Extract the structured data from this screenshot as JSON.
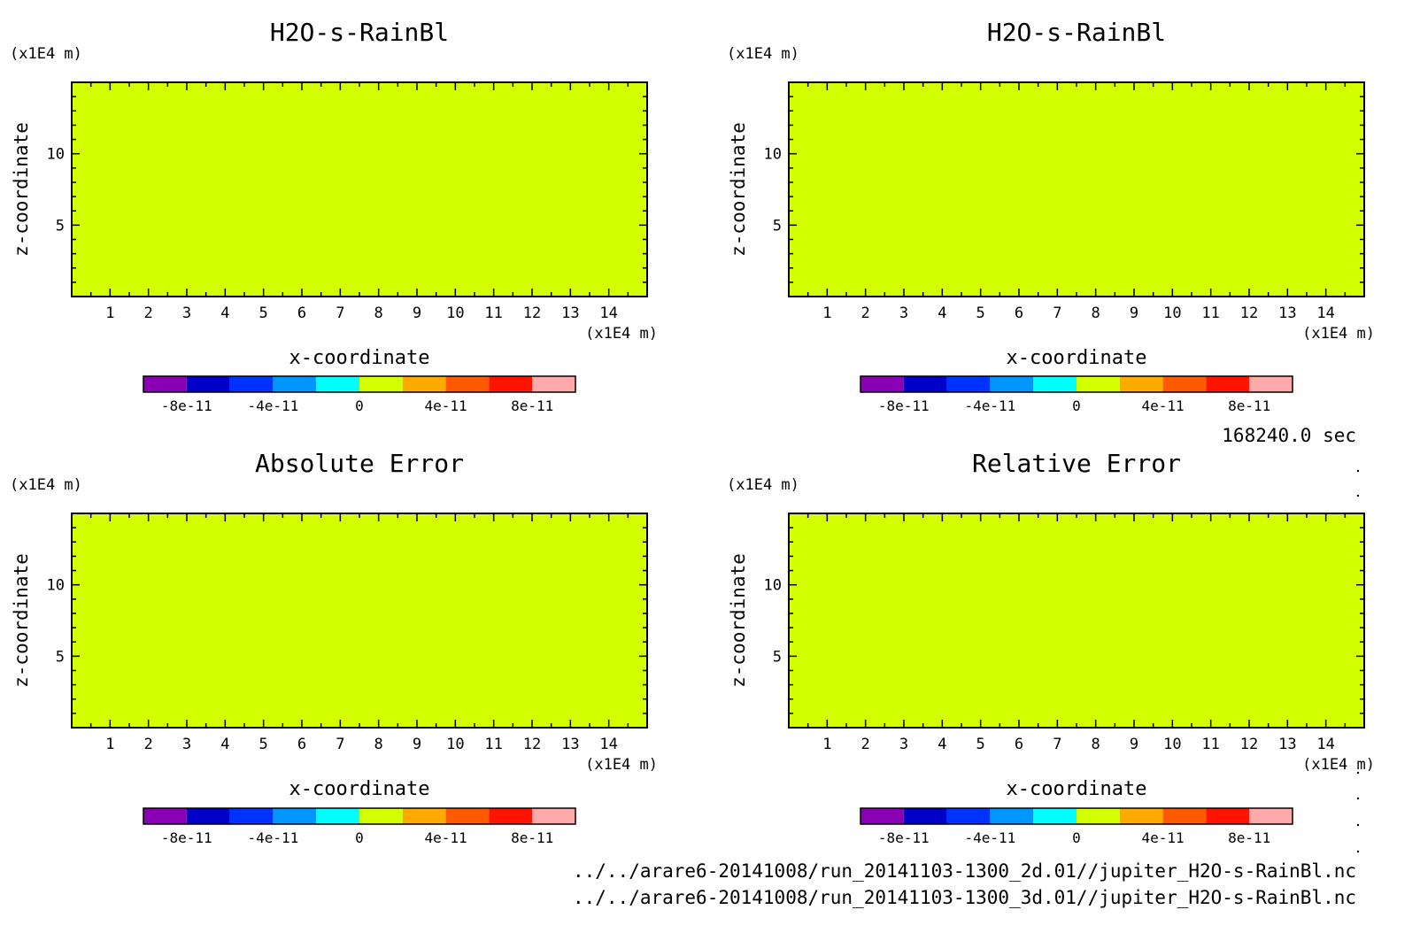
{
  "time_label": "168240.0 sec",
  "files": [
    "../../arare6-20141008/run_20141103-1300_2d.01//jupiter_H2O-s-RainBl.nc",
    "../../arare6-20141008/run_20141103-1300_3d.01//jupiter_H2O-s-RainBl.nc"
  ],
  "colors": {
    "background_field": "#d4ff00",
    "anomaly_field": "#00ffff"
  },
  "chart_data": [
    {
      "type": "heatmap",
      "title": "H2O-s-RainBl",
      "xlabel": "x-coordinate",
      "ylabel": "z-coordinate",
      "x_unit": "(x1E4 m)",
      "y_unit": "(x1E4 m)",
      "xlim": [
        0,
        15
      ],
      "ylim": [
        0,
        15
      ],
      "x_ticks": [
        "1",
        "2",
        "3",
        "4",
        "5",
        "6",
        "7",
        "8",
        "9",
        "10",
        "11",
        "12",
        "13",
        "14"
      ],
      "y_ticks": [
        "5",
        "10"
      ],
      "field": "uniform",
      "colorbar": {
        "colors": [
          "#8a00b4",
          "#0000c8",
          "#0032ff",
          "#0096ff",
          "#00ffff",
          "#d4ff00",
          "#ffaa00",
          "#ff5a00",
          "#ff1400",
          "#ffaaaa"
        ],
        "tick_labels": [
          "-8e-11",
          "-4e-11",
          "0",
          "4e-11",
          "8e-11"
        ]
      }
    },
    {
      "type": "heatmap",
      "title": "H2O-s-RainBl",
      "xlabel": "x-coordinate",
      "ylabel": "z-coordinate",
      "x_unit": "(x1E4 m)",
      "y_unit": "(x1E4 m)",
      "xlim": [
        0,
        15
      ],
      "ylim": [
        0,
        15
      ],
      "x_ticks": [
        "1",
        "2",
        "3",
        "4",
        "5",
        "6",
        "7",
        "8",
        "9",
        "10",
        "11",
        "12",
        "13",
        "14"
      ],
      "y_ticks": [
        "5",
        "10"
      ],
      "field": "uniform",
      "colorbar": {
        "colors": [
          "#8a00b4",
          "#0000c8",
          "#0032ff",
          "#0096ff",
          "#00ffff",
          "#d4ff00",
          "#ffaa00",
          "#ff5a00",
          "#ff1400",
          "#ffaaaa"
        ],
        "tick_labels": [
          "-8e-11",
          "-4e-11",
          "0",
          "4e-11",
          "8e-11"
        ]
      }
    },
    {
      "type": "heatmap",
      "title": "Absolute Error",
      "xlabel": "x-coordinate",
      "ylabel": "z-coordinate",
      "x_unit": "(x1E4 m)",
      "y_unit": "(x1E4 m)",
      "xlim": [
        0,
        15
      ],
      "ylim": [
        0,
        15
      ],
      "x_ticks": [
        "1",
        "2",
        "3",
        "4",
        "5",
        "6",
        "7",
        "8",
        "9",
        "10",
        "11",
        "12",
        "13",
        "14"
      ],
      "y_ticks": [
        "5",
        "10"
      ],
      "field": "patchy",
      "colorbar": {
        "colors": [
          "#8a00b4",
          "#0000c8",
          "#0032ff",
          "#0096ff",
          "#00ffff",
          "#d4ff00",
          "#ffaa00",
          "#ff5a00",
          "#ff1400",
          "#ffaaaa"
        ],
        "tick_labels": [
          "-8e-11",
          "-4e-11",
          "0",
          "4e-11",
          "8e-11"
        ]
      }
    },
    {
      "type": "heatmap",
      "title": "Relative Error",
      "xlabel": "x-coordinate",
      "ylabel": "z-coordinate",
      "x_unit": "(x1E4 m)",
      "y_unit": "(x1E4 m)",
      "xlim": [
        0,
        15
      ],
      "ylim": [
        0,
        15
      ],
      "x_ticks": [
        "1",
        "2",
        "3",
        "4",
        "5",
        "6",
        "7",
        "8",
        "9",
        "10",
        "11",
        "12",
        "13",
        "14"
      ],
      "y_ticks": [
        "5",
        "10"
      ],
      "field": "patchy",
      "colorbar": {
        "colors": [
          "#8a00b4",
          "#0000c8",
          "#0032ff",
          "#0096ff",
          "#00ffff",
          "#d4ff00",
          "#ffaa00",
          "#ff5a00",
          "#ff1400",
          "#ffaaaa"
        ],
        "tick_labels": [
          "-8e-11",
          "-4e-11",
          "0",
          "4e-11",
          "8e-11"
        ]
      }
    }
  ]
}
